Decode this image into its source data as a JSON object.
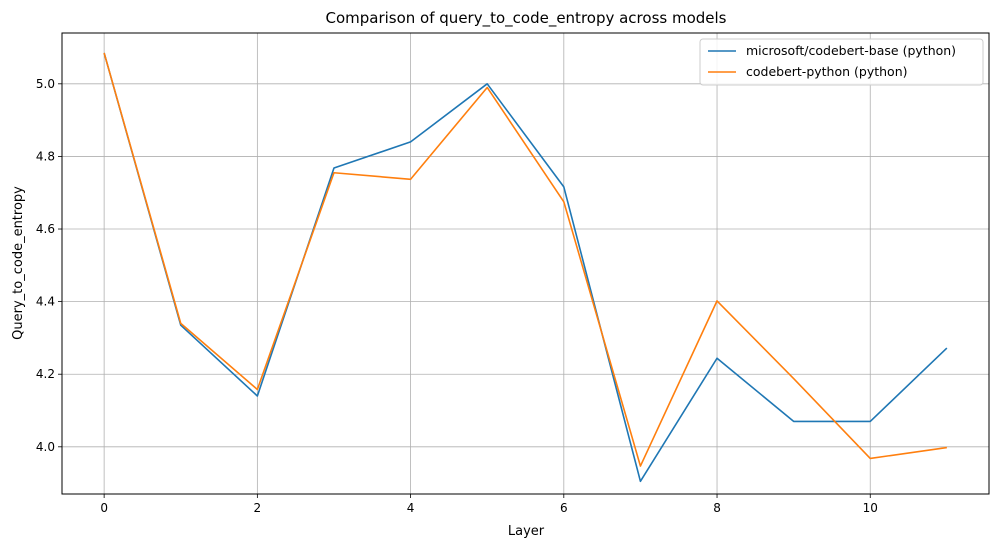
{
  "chart_data": {
    "type": "line",
    "title": "Comparison of query_to_code_entropy across models",
    "xlabel": "Layer",
    "ylabel": "Query_to_code_entropy",
    "xlim": [
      -0.55,
      11.55
    ],
    "ylim": [
      3.87,
      5.14
    ],
    "x_ticks": [
      0,
      2,
      4,
      6,
      8,
      10
    ],
    "y_ticks": [
      4.0,
      4.2,
      4.4,
      4.6,
      4.8,
      5.0
    ],
    "grid": true,
    "legend_position": "top-right",
    "x": [
      0,
      1,
      2,
      3,
      4,
      5,
      6,
      7,
      8,
      9,
      10,
      11
    ],
    "series": [
      {
        "name": "microsoft/codebert-base (python)",
        "color": "#1f77b4",
        "values": [
          5.085,
          4.335,
          4.14,
          4.768,
          4.84,
          5.0,
          4.716,
          3.905,
          4.244,
          4.07,
          4.07,
          4.272
        ]
      },
      {
        "name": "codebert-python (python)",
        "color": "#ff7f0e",
        "values": [
          5.085,
          4.34,
          4.158,
          4.755,
          4.737,
          4.99,
          4.675,
          3.947,
          4.402,
          4.188,
          3.968,
          3.998
        ]
      }
    ]
  }
}
